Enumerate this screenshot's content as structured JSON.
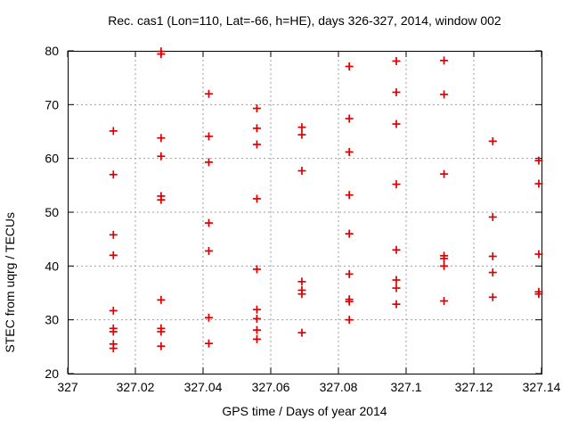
{
  "chart_data": {
    "type": "scatter",
    "title": "Rec. cas1 (Lon=110, Lat=-66, h=HE), days 326-327, 2014, window 002",
    "xlabel": "GPS time / Days of year 2014",
    "ylabel": "STEC from uqrg / TECUs",
    "xlim": [
      327,
      327.14
    ],
    "ylim": [
      20,
      80
    ],
    "xtick_values": [
      327,
      327.02,
      327.04,
      327.06,
      327.08,
      327.1,
      327.12,
      327.14
    ],
    "xtick_labels": [
      "327",
      "327.02",
      "327.04",
      "327.06",
      "327.08",
      "327.1",
      "327.12",
      "327.14"
    ],
    "ytick_values": [
      20,
      30,
      40,
      50,
      60,
      70,
      80
    ],
    "ytick_labels": [
      "20",
      "30",
      "40",
      "50",
      "60",
      "70",
      "80"
    ],
    "grid": true,
    "legend": false,
    "marker": "plus",
    "marker_color": "#dd0000",
    "points": [
      [
        327.0135,
        65.1
      ],
      [
        327.0135,
        57.0
      ],
      [
        327.0135,
        45.8
      ],
      [
        327.0135,
        42.0
      ],
      [
        327.0135,
        31.7
      ],
      [
        327.0135,
        28.4
      ],
      [
        327.0135,
        27.8
      ],
      [
        327.0135,
        25.5
      ],
      [
        327.0135,
        24.7
      ],
      [
        327.0276,
        79.9
      ],
      [
        327.0276,
        79.4
      ],
      [
        327.0276,
        63.8
      ],
      [
        327.0276,
        60.4
      ],
      [
        327.0276,
        53.0
      ],
      [
        327.0276,
        52.3
      ],
      [
        327.0276,
        33.7
      ],
      [
        327.0276,
        28.4
      ],
      [
        327.0276,
        27.8
      ],
      [
        327.0276,
        25.1
      ],
      [
        327.0417,
        72.0
      ],
      [
        327.0417,
        64.1
      ],
      [
        327.0417,
        59.3
      ],
      [
        327.0417,
        48.0
      ],
      [
        327.0417,
        42.8
      ],
      [
        327.0417,
        30.4
      ],
      [
        327.0417,
        25.6
      ],
      [
        327.0559,
        69.3
      ],
      [
        327.0559,
        65.6
      ],
      [
        327.0559,
        62.6
      ],
      [
        327.0559,
        52.5
      ],
      [
        327.0559,
        39.4
      ],
      [
        327.0559,
        31.9
      ],
      [
        327.0559,
        30.2
      ],
      [
        327.0559,
        28.1
      ],
      [
        327.0559,
        26.4
      ],
      [
        327.0692,
        65.8
      ],
      [
        327.0692,
        64.4
      ],
      [
        327.0692,
        57.7
      ],
      [
        327.0692,
        37.1
      ],
      [
        327.0692,
        35.5
      ],
      [
        327.0692,
        34.8
      ],
      [
        327.0692,
        27.6
      ],
      [
        327.0832,
        77.1
      ],
      [
        327.0832,
        67.4
      ],
      [
        327.0832,
        61.2
      ],
      [
        327.0832,
        53.2
      ],
      [
        327.0832,
        46.0
      ],
      [
        327.0832,
        38.5
      ],
      [
        327.0832,
        33.8
      ],
      [
        327.0832,
        33.4
      ],
      [
        327.0832,
        30.0
      ],
      [
        327.0971,
        78.1
      ],
      [
        327.0971,
        72.3
      ],
      [
        327.0971,
        66.4
      ],
      [
        327.0971,
        55.2
      ],
      [
        327.0971,
        43.0
      ],
      [
        327.0971,
        37.4
      ],
      [
        327.0971,
        35.9
      ],
      [
        327.0971,
        32.9
      ],
      [
        327.1112,
        78.2
      ],
      [
        327.1112,
        71.9
      ],
      [
        327.1112,
        57.1
      ],
      [
        327.1112,
        41.9
      ],
      [
        327.1112,
        41.4
      ],
      [
        327.1112,
        40.0
      ],
      [
        327.1112,
        33.5
      ],
      [
        327.1256,
        63.2
      ],
      [
        327.1256,
        49.1
      ],
      [
        327.1256,
        41.8
      ],
      [
        327.1256,
        38.8
      ],
      [
        327.1256,
        34.2
      ],
      [
        327.1392,
        59.6
      ],
      [
        327.1392,
        55.3
      ],
      [
        327.1392,
        42.2
      ],
      [
        327.1392,
        35.2
      ],
      [
        327.1392,
        34.8
      ]
    ]
  }
}
